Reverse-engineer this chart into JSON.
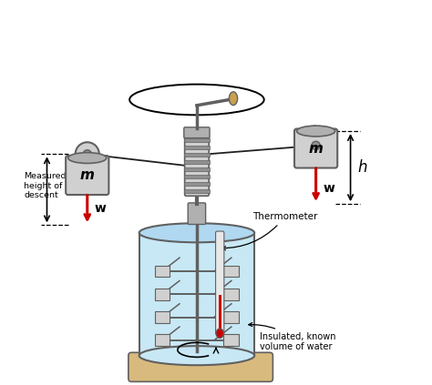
{
  "bg_color": "#ffffff",
  "fig_width": 4.74,
  "fig_height": 4.23,
  "dpi": 100,
  "colors": {
    "gray_metal": "#b0b0b0",
    "gray_dark": "#606060",
    "gray_light": "#d0d0d0",
    "gray_mid": "#909090",
    "water_blue": "#c8e8f5",
    "water_top": "#b0d8f0",
    "tan_base": "#d9ba7e",
    "tan_handle": "#c8a050",
    "black": "#000000",
    "red_arrow": "#cc0000",
    "rope_color": "#202020",
    "therm_red": "#cc0000",
    "therm_glass": "#e8e8e8",
    "white": "#ffffff"
  },
  "labels": {
    "thermometer": "Thermometer",
    "insulated": "Insulated, known\nvolume of water",
    "measured": "Measured\nheight of\ndescent",
    "m_left": "m",
    "m_right": "m",
    "w_left": "w",
    "w_right": "w",
    "h_label": "h"
  }
}
